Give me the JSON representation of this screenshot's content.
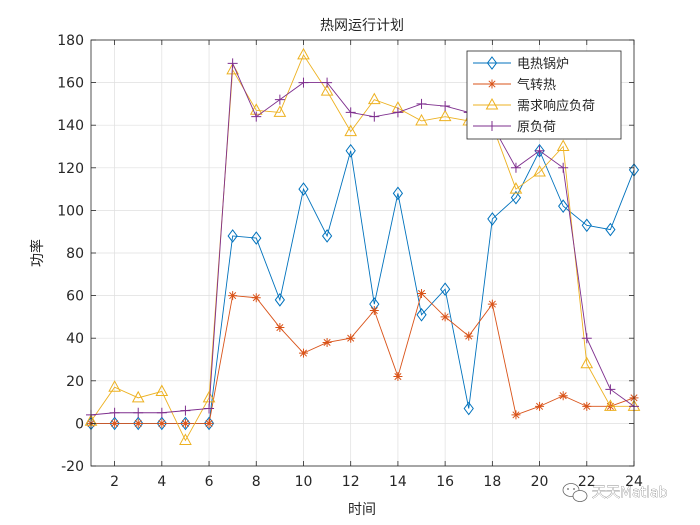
{
  "chart_data": {
    "type": "line",
    "title": "热网运行计划",
    "xlabel": "时间",
    "ylabel": "功率",
    "xlim": [
      1,
      24
    ],
    "ylim": [
      -20,
      180
    ],
    "xticks": [
      2,
      4,
      6,
      8,
      10,
      12,
      14,
      16,
      18,
      20,
      22,
      24
    ],
    "yticks": [
      -20,
      0,
      20,
      40,
      60,
      80,
      100,
      120,
      140,
      160,
      180
    ],
    "grid": true,
    "legend_position": "top-right",
    "x": [
      1,
      2,
      3,
      4,
      5,
      6,
      7,
      8,
      9,
      10,
      11,
      12,
      13,
      14,
      15,
      16,
      17,
      18,
      19,
      20,
      21,
      22,
      23,
      24
    ],
    "series": [
      {
        "name": "电热锅炉",
        "color": "#0072BD",
        "marker": "diamond",
        "values": [
          0,
          0,
          0,
          0,
          0,
          0,
          88,
          87,
          58,
          110,
          88,
          128,
          56,
          108,
          51,
          63,
          7,
          96,
          106,
          128,
          102,
          93,
          91,
          119
        ]
      },
      {
        "name": "气转热",
        "color": "#D95319",
        "marker": "asterisk",
        "values": [
          0,
          0,
          0,
          0,
          0,
          0,
          60,
          59,
          45,
          33,
          38,
          40,
          53,
          22,
          61,
          50,
          41,
          56,
          4,
          8,
          13,
          8,
          8,
          12
        ]
      },
      {
        "name": "需求响应负荷",
        "color": "#EDB120",
        "marker": "triangle",
        "values": [
          1,
          17,
          12,
          15,
          -8,
          12,
          166,
          147,
          146,
          173,
          156,
          137,
          152,
          148,
          142,
          144,
          142,
          140,
          110,
          118,
          130,
          28,
          8,
          8
        ]
      },
      {
        "name": "原负荷",
        "color": "#7E2F8E",
        "marker": "plus",
        "values": [
          4,
          5,
          5,
          5,
          6,
          7,
          169,
          144,
          152,
          160,
          160,
          146,
          144,
          146,
          150,
          149,
          146,
          140,
          120,
          128,
          120,
          40,
          16,
          8
        ]
      }
    ]
  },
  "watermark": {
    "text": "天天Matlab"
  }
}
